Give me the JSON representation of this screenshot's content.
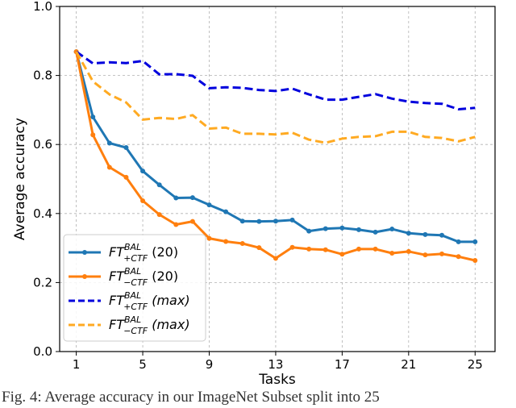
{
  "chart_data": {
    "type": "line",
    "xlabel": "Tasks",
    "ylabel": "Average accuracy",
    "xlim": [
      0,
      26.2
    ],
    "ylim": [
      0.0,
      1.0
    ],
    "xticks": [
      1,
      5,
      9,
      13,
      17,
      21,
      25
    ],
    "yticks": [
      0.0,
      0.2,
      0.4,
      0.6,
      0.8,
      1.0
    ],
    "grid": true,
    "legend_position": "lower-left",
    "x": [
      1,
      2,
      3,
      4,
      5,
      6,
      7,
      8,
      9,
      10,
      11,
      12,
      13,
      14,
      15,
      16,
      17,
      18,
      19,
      20,
      21,
      22,
      23,
      24,
      25
    ],
    "series": [
      {
        "name": "FT+CTF BAL (20)",
        "legend": {
          "base": "FT",
          "sup": "BAL",
          "sub": "+CTF",
          "suffix": " (20)",
          "italic_suffix": false
        },
        "color": "#1f77b4",
        "style": "solid",
        "marker": true,
        "values": [
          0.869,
          0.68,
          0.604,
          0.591,
          0.523,
          0.483,
          0.445,
          0.446,
          0.425,
          0.405,
          0.378,
          0.377,
          0.378,
          0.381,
          0.349,
          0.356,
          0.358,
          0.353,
          0.346,
          0.355,
          0.343,
          0.339,
          0.337,
          0.318,
          0.318
        ]
      },
      {
        "name": "FT-CTF BAL (20)",
        "legend": {
          "base": "FT",
          "sup": "BAL",
          "sub": "−CTF",
          "suffix": " (20)",
          "italic_suffix": false
        },
        "color": "#ff7f0e",
        "style": "solid",
        "marker": true,
        "values": [
          0.869,
          0.628,
          0.534,
          0.505,
          0.437,
          0.397,
          0.368,
          0.377,
          0.328,
          0.319,
          0.313,
          0.301,
          0.27,
          0.302,
          0.297,
          0.295,
          0.282,
          0.297,
          0.297,
          0.285,
          0.29,
          0.28,
          0.283,
          0.275,
          0.264
        ]
      },
      {
        "name": "FT+CTF BAL (max)",
        "legend": {
          "base": "FT",
          "sup": "BAL",
          "sub": "+CTF",
          "suffix": " (max)",
          "italic_suffix": true
        },
        "color": "#0000dd",
        "style": "dashed",
        "marker": false,
        "values": [
          0.869,
          0.835,
          0.838,
          0.836,
          0.842,
          0.803,
          0.804,
          0.799,
          0.763,
          0.766,
          0.764,
          0.758,
          0.755,
          0.762,
          0.745,
          0.73,
          0.73,
          0.738,
          0.746,
          0.733,
          0.724,
          0.72,
          0.718,
          0.702,
          0.706
        ]
      },
      {
        "name": "FT-CTF BAL (max)",
        "legend": {
          "base": "FT",
          "sup": "BAL",
          "sub": "−CTF",
          "suffix": " (max)",
          "italic_suffix": true
        },
        "color": "#ffaa22",
        "style": "dashed",
        "marker": false,
        "values": [
          0.869,
          0.783,
          0.745,
          0.722,
          0.672,
          0.677,
          0.674,
          0.685,
          0.646,
          0.649,
          0.631,
          0.631,
          0.629,
          0.634,
          0.614,
          0.605,
          0.617,
          0.622,
          0.624,
          0.637,
          0.637,
          0.622,
          0.619,
          0.609,
          0.622
        ]
      }
    ]
  },
  "caption": "Fig. 4: Average accuracy in our ImageNet Subset split into 25"
}
